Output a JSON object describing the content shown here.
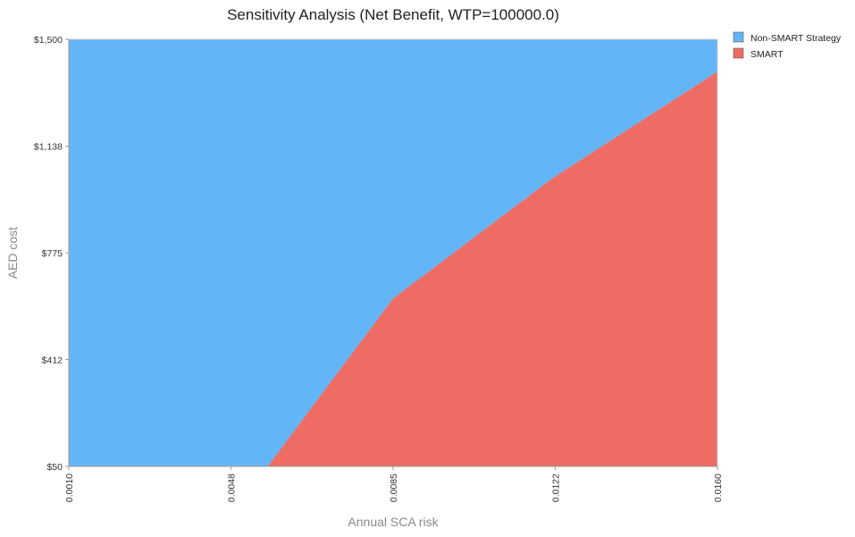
{
  "chart_data": {
    "type": "area",
    "title": "Sensitivity Analysis (Net Benefit, WTP=100000.0)",
    "xlabel": "Annual SCA risk",
    "ylabel": "AED cost",
    "xlim": [
      0.001,
      0.016
    ],
    "ylim": [
      50,
      1500
    ],
    "x_ticks": [
      "0.0010",
      "0.0048",
      "0.0085",
      "0.0122",
      "0.0160"
    ],
    "y_ticks": [
      "$50",
      "$412",
      "$775",
      "$1,138",
      "$1,500"
    ],
    "grid": false,
    "legend_position": "top-right",
    "series": [
      {
        "name": "Non-SMART Strategy",
        "color": "#64b5f6",
        "region": "above boundary"
      },
      {
        "name": "SMART",
        "color": "#ef6c64",
        "region": "below boundary"
      }
    ],
    "boundary": [
      {
        "x": 0.0056,
        "y": 50
      },
      {
        "x": 0.0085,
        "y": 620
      },
      {
        "x": 0.0122,
        "y": 1030
      },
      {
        "x": 0.016,
        "y": 1390
      }
    ]
  }
}
